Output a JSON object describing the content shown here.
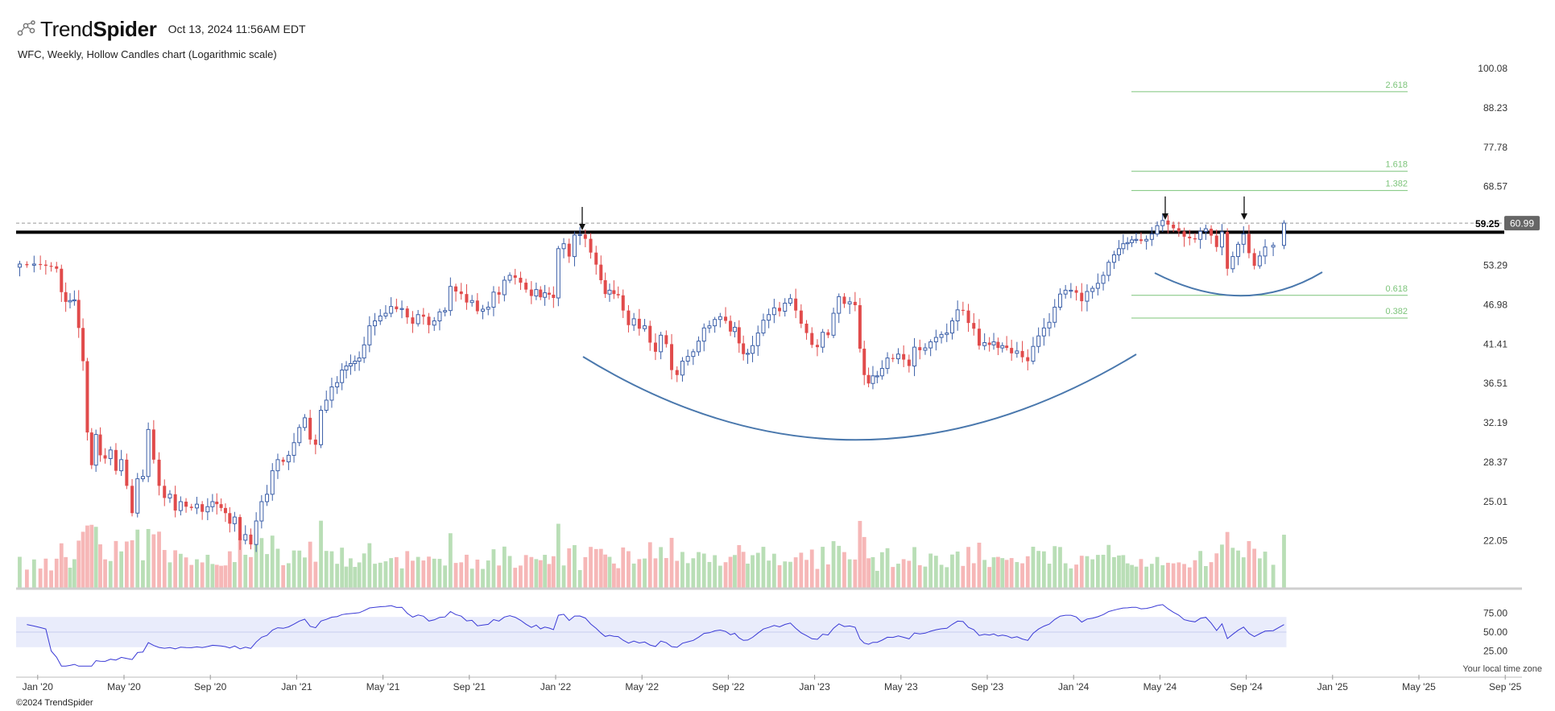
{
  "header": {
    "brand_light": "Trend",
    "brand_bold": "Spider",
    "timestamp": "Oct 13, 2024 11:56AM EDT",
    "subtitle": "WFC, Weekly, Hollow Candles chart (Logarithmic scale)",
    "logo_icon": "nodes-icon"
  },
  "footer": {
    "copyright": "©2024 TrendSpider",
    "timezone_note": "Your local time zone"
  },
  "colors": {
    "up": "#3b5fa8",
    "down": "#e14b4b",
    "vol_up": "#b9deb6",
    "vol_down": "#f6b7b7",
    "fib": "#7cc47a",
    "rsi_line": "#3a3ad6",
    "rsi_band": "#e9ecfb",
    "arc": "#4a78ad",
    "resistance": "#000000",
    "price_badge": "#666666"
  },
  "chart_data": {
    "type": "candlestick",
    "symbol": "WFC",
    "scale": "log",
    "y_ticks": [
      100.08,
      88.23,
      77.78,
      68.57,
      53.29,
      46.98,
      41.41,
      36.51,
      32.19,
      28.37,
      25.01,
      22.05
    ],
    "y_range": [
      20.5,
      100.08
    ],
    "x_ticks": [
      "Jan '20",
      "May '20",
      "Sep '20",
      "Jan '21",
      "May '21",
      "Sep '21",
      "Jan '22",
      "May '22",
      "Sep '22",
      "Jan '23",
      "May '23",
      "Sep '23",
      "Jan '24",
      "May '24",
      "Sep '24",
      "Jan '25",
      "May '25",
      "Sep '25"
    ],
    "x_range": [
      "Dec '19",
      "Oct '25"
    ],
    "last_price": "60.99",
    "resistance_label": "59.25",
    "resistance_level": 59.25,
    "dashed_level": 60.99,
    "weekly_closes": [
      {
        "month": "Dec '19",
        "values": [
          53.5,
          53.3,
          53.5
        ]
      },
      {
        "month": "Jan '20",
        "values": [
          53.4,
          53.2,
          53.1,
          52.7
        ]
      },
      {
        "month": "Feb '20",
        "values": [
          48.9,
          47.4,
          47.6,
          47.7,
          43.6
        ]
      },
      {
        "month": "Mar '20",
        "values": [
          39.2,
          31.2,
          28.1,
          31.0,
          29.0
        ]
      },
      {
        "month": "Apr '20",
        "values": [
          28.7,
          29.5,
          27.6,
          28.6
        ]
      },
      {
        "month": "May '20",
        "values": [
          26.3,
          24.1,
          26.9,
          27.1
        ]
      },
      {
        "month": "Jun '20",
        "values": [
          31.5,
          28.6,
          26.3,
          25.3
        ]
      },
      {
        "month": "Jul '20",
        "values": [
          25.6,
          24.3,
          25.0,
          24.6
        ]
      },
      {
        "month": "Aug '20",
        "values": [
          24.5,
          24.8,
          24.2,
          24.6
        ]
      },
      {
        "month": "Sep '20",
        "values": [
          25.0,
          24.8,
          24.5,
          24.1,
          23.3
        ]
      },
      {
        "month": "Oct '20",
        "values": [
          23.8,
          22.1,
          22.5,
          21.8
        ]
      },
      {
        "month": "Nov '20",
        "values": [
          23.5,
          25.0,
          25.6,
          27.6
        ]
      },
      {
        "month": "Dec '20",
        "values": [
          28.6,
          28.4,
          29.0,
          30.2
        ]
      },
      {
        "month": "Jan '21",
        "values": [
          31.7,
          32.7,
          30.5,
          30.0
        ]
      },
      {
        "month": "Feb '21",
        "values": [
          33.5,
          34.6,
          36.1,
          36.6
        ]
      },
      {
        "month": "Mar '21",
        "values": [
          38.1,
          38.6,
          38.9,
          39.2,
          39.6
        ]
      },
      {
        "month": "Apr '21",
        "values": [
          41.3,
          43.9,
          44.6,
          45.3
        ]
      },
      {
        "month": "May '21",
        "values": [
          45.7,
          46.7,
          46.3,
          46.4
        ]
      },
      {
        "month": "Jun '21",
        "values": [
          45.1,
          44.2,
          45.5,
          45.2
        ]
      },
      {
        "month": "Jul '21",
        "values": [
          44.0,
          44.6,
          45.9,
          46.1
        ]
      },
      {
        "month": "Aug '21",
        "values": [
          49.8,
          49.0,
          48.6,
          47.3
        ]
      },
      {
        "month": "Sep '21",
        "values": [
          47.6,
          46.0,
          46.3,
          46.6
        ]
      },
      {
        "month": "Oct '21",
        "values": [
          48.9,
          48.5,
          50.8,
          51.6
        ]
      },
      {
        "month": "Nov '21",
        "values": [
          51.2,
          50.4,
          49.3,
          48.3
        ]
      },
      {
        "month": "Dec '21",
        "values": [
          49.3,
          48.1,
          48.8,
          48.5,
          48.0
        ]
      },
      {
        "month": "Jan '22",
        "values": [
          56.2,
          57.1,
          54.8,
          58.7
        ]
      },
      {
        "month": "Feb '22",
        "values": [
          58.8,
          58.0,
          55.5,
          53.4
        ]
      },
      {
        "month": "Mar '22",
        "values": [
          50.8,
          48.6,
          49.2,
          48.6,
          48.4
        ]
      },
      {
        "month": "Apr '22",
        "values": [
          46.1,
          44.0,
          44.9,
          43.5
        ]
      },
      {
        "month": "May '22",
        "values": [
          43.9,
          41.6,
          40.4,
          42.6
        ]
      },
      {
        "month": "Jun '22",
        "values": [
          41.4,
          38.1,
          37.5,
          39.2
        ]
      },
      {
        "month": "Jul '22",
        "values": [
          39.8,
          40.4,
          41.8,
          43.6
        ]
      },
      {
        "month": "Aug '22",
        "values": [
          43.9,
          44.8,
          45.2,
          44.6
        ]
      },
      {
        "month": "Sep '22",
        "values": [
          43.1,
          43.7,
          41.5,
          40.1,
          40.2
        ]
      },
      {
        "month": "Oct '22",
        "values": [
          41.2,
          42.9,
          44.7,
          45.5
        ]
      },
      {
        "month": "Nov '22",
        "values": [
          46.5,
          46.0,
          47.2,
          47.9
        ]
      },
      {
        "month": "Dec '22",
        "values": [
          46.1,
          44.2,
          42.9,
          41.3
        ]
      },
      {
        "month": "Jan '23",
        "values": [
          41.0,
          43.0,
          42.6,
          45.7
        ]
      },
      {
        "month": "Feb '23",
        "values": [
          48.2,
          47.1,
          47.4,
          46.9
        ]
      },
      {
        "month": "Mar '23",
        "values": [
          40.8,
          37.5,
          36.5,
          37.4,
          37.4
        ]
      },
      {
        "month": "Apr '23",
        "values": [
          38.3,
          39.6,
          39.5,
          40.1
        ]
      },
      {
        "month": "May '23",
        "values": [
          39.4,
          38.6,
          41.0,
          40.6
        ]
      },
      {
        "month": "Jun '23",
        "values": [
          40.9,
          41.7,
          42.3,
          42.7
        ]
      },
      {
        "month": "Jul '23",
        "values": [
          42.9,
          44.6,
          46.2,
          46.1
        ]
      },
      {
        "month": "Aug '23",
        "values": [
          44.3,
          43.5,
          41.2,
          41.6
        ]
      },
      {
        "month": "Sep '23",
        "values": [
          41.3,
          41.7,
          40.9,
          41.2,
          40.9
        ]
      },
      {
        "month": "Oct '23",
        "values": [
          40.2,
          40.5,
          39.7,
          39.2
        ]
      },
      {
        "month": "Nov '23",
        "values": [
          41.1,
          42.5,
          43.6,
          44.4
        ]
      },
      {
        "month": "Dec '23",
        "values": [
          46.6,
          48.6,
          49.2,
          49.2
        ]
      },
      {
        "month": "Jan '24",
        "values": [
          48.8,
          47.5,
          49.0,
          49.5
        ]
      },
      {
        "month": "Feb '24",
        "values": [
          50.3,
          51.6,
          53.8,
          55.1
        ]
      },
      {
        "month": "Mar '24",
        "values": [
          56.2,
          57.1,
          57.3,
          57.8,
          57.9
        ]
      },
      {
        "month": "Apr '24",
        "values": [
          57.6,
          57.9,
          58.9,
          60.5
        ]
      },
      {
        "month": "May '24",
        "values": [
          61.5,
          60.7,
          60.0,
          59.4
        ]
      },
      {
        "month": "Jun '24",
        "values": [
          58.4,
          58.1,
          57.9,
          59.4
        ]
      },
      {
        "month": "Jul '24",
        "values": [
          59.9,
          58.6,
          56.5,
          59.3
        ]
      },
      {
        "month": "Aug '24",
        "values": [
          52.7,
          54.8,
          57.0,
          58.9
        ]
      },
      {
        "month": "Sep '24",
        "values": [
          55.4,
          53.2,
          54.9,
          56.5
        ]
      },
      {
        "month": "Oct '24",
        "values": [
          56.8,
          60.99
        ]
      }
    ],
    "fibonacci": [
      {
        "ratio": "2.618",
        "level": 92.9
      },
      {
        "ratio": "1.618",
        "level": 72.0
      },
      {
        "ratio": "1.382",
        "level": 67.7
      },
      {
        "ratio": "0.618",
        "level": 48.4
      },
      {
        "ratio": "0.382",
        "level": 45.0
      }
    ],
    "annotations": [
      {
        "kind": "arrow-down",
        "at": "Feb '22"
      },
      {
        "kind": "arrow-down",
        "at": "Apr '24"
      },
      {
        "kind": "arrow-down",
        "at": "Sep '24"
      },
      {
        "kind": "rounded-bottom-arc",
        "from": "Feb '22",
        "to": "Feb '24"
      },
      {
        "kind": "rounded-bottom-arc",
        "from": "May '24",
        "to": "Nov '24"
      }
    ],
    "volume_panel": true,
    "rsi": {
      "y_ticks": [
        "75.00",
        "50.00",
        "25.00"
      ],
      "band": [
        30,
        70
      ],
      "midline": 50
    }
  }
}
